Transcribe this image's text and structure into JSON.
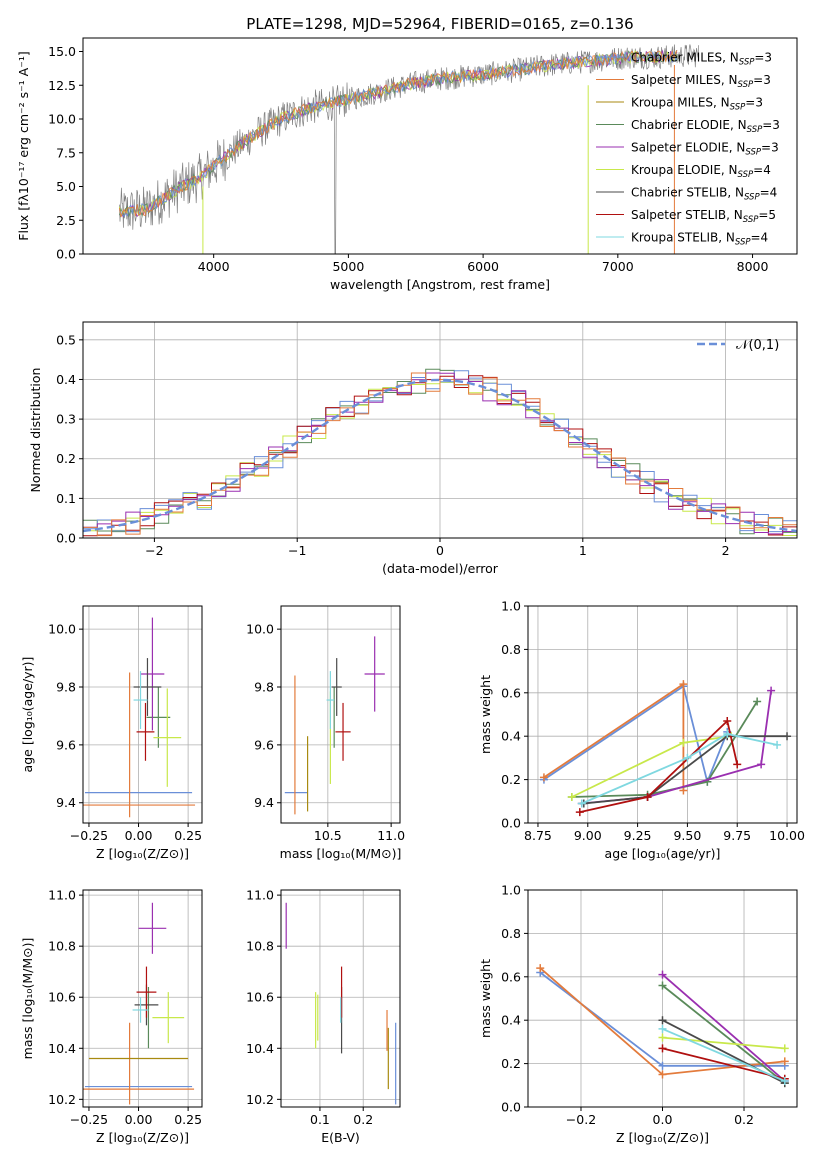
{
  "palette": [
    "#6a8fd8",
    "#e37b3c",
    "#a88a10",
    "#5a8a5a",
    "#9a2fb0",
    "#c8e84a",
    "#4a4a4a",
    "#b01010",
    "#7fd8e0"
  ],
  "chart_data": [
    {
      "type": "line",
      "title": "PLATE=1298, MJD=52964, FIBERID=0165, z=0.136",
      "xlabel": "wavelength [Angstrom, rest frame]",
      "ylabel": "Flux [fλ10⁻¹⁷ erg cm⁻² s⁻¹ A⁻¹]",
      "xlim": [
        3030,
        8330
      ],
      "ylim": [
        0,
        16
      ],
      "xticks": [
        4000,
        5000,
        6000,
        7000,
        8000
      ],
      "yticks": [
        0.0,
        2.5,
        5.0,
        7.5,
        10.0,
        12.5,
        15.0
      ],
      "ytick_labels": [
        "0.0",
        "2.5",
        "5.0",
        "7.5",
        "10.0",
        "12.5",
        "15.0"
      ],
      "grid": false,
      "legend_position": "top-right",
      "data_color": "#808080",
      "spectrum_anchor_x": [
        3300,
        3500,
        3700,
        3900,
        4100,
        4300,
        4500,
        4700,
        4900,
        5100,
        5300,
        5500,
        5700,
        5900,
        6100,
        6300,
        6500,
        6700,
        6900,
        7100,
        7300,
        7500
      ],
      "spectrum_anchor_y": [
        3.1,
        3.3,
        4.6,
        5.7,
        7.3,
        8.8,
        10.0,
        10.8,
        11.2,
        11.7,
        12.2,
        12.7,
        13.0,
        13.2,
        13.4,
        13.7,
        14.0,
        14.2,
        14.4,
        14.6,
        14.6,
        14.7
      ],
      "series": [
        {
          "name": "Chabrier MILES, N_SSP=3",
          "label_main": "Chabrier MILES, N",
          "label_sub": "SSP",
          "label_tail": "=3"
        },
        {
          "name": "Salpeter MILES, N_SSP=3",
          "label_main": "Salpeter MILES, N",
          "label_sub": "SSP",
          "label_tail": "=3"
        },
        {
          "name": "Kroupa MILES, N_SSP=3",
          "label_main": "Kroupa MILES, N",
          "label_sub": "SSP",
          "label_tail": "=3"
        },
        {
          "name": "Chabrier ELODIE, N_SSP=3",
          "label_main": "Chabrier ELODIE, N",
          "label_sub": "SSP",
          "label_tail": "=3"
        },
        {
          "name": "Salpeter ELODIE, N_SSP=3",
          "label_main": "Salpeter ELODIE, N",
          "label_sub": "SSP",
          "label_tail": "=3"
        },
        {
          "name": "Kroupa ELODIE, N_SSP=4",
          "label_main": "Kroupa ELODIE, N",
          "label_sub": "SSP",
          "label_tail": "=4"
        },
        {
          "name": "Chabrier STELIB, N_SSP=4",
          "label_main": "Chabrier STELIB, N",
          "label_sub": "SSP",
          "label_tail": "=4"
        },
        {
          "name": "Salpeter STELIB, N_SSP=5",
          "label_main": "Salpeter STELIB, N",
          "label_sub": "SSP",
          "label_tail": "=5"
        },
        {
          "name": "Kroupa STELIB, N_SSP=4",
          "label_main": "Kroupa STELIB, N",
          "label_sub": "SSP",
          "label_tail": "=4"
        }
      ]
    },
    {
      "type": "histogram",
      "xlabel": "(data-model)/error",
      "ylabel": "Normed distribution",
      "xlim": [
        -2.5,
        2.5
      ],
      "ylim": [
        0,
        0.545
      ],
      "xticks": [
        -2,
        -1,
        0,
        1,
        2
      ],
      "xtick_labels": [
        "−2",
        "−1",
        "0",
        "1",
        "2"
      ],
      "yticks": [
        0.0,
        0.1,
        0.2,
        0.3,
        0.4,
        0.5
      ],
      "ytick_labels": [
        "0.0",
        "0.1",
        "0.2",
        "0.3",
        "0.4",
        "0.5"
      ],
      "grid": true,
      "legend_position": "top-right",
      "reference_curve": {
        "name": "𝒩(0,1)",
        "mean": 0,
        "sigma": 1
      },
      "bin_width": 0.1
    },
    {
      "type": "errorbar",
      "xlabel": "Z [log₁₀(Z/Z⊙)]",
      "ylabel": "age  [log₁₀(age/yr)]",
      "xlim": [
        -0.28,
        0.32
      ],
      "ylim": [
        9.33,
        10.08
      ],
      "xticks": [
        -0.25,
        0.0,
        0.25
      ],
      "xtick_labels": [
        "−0.25",
        "0.00",
        "0.25"
      ],
      "yticks": [
        9.4,
        9.6,
        9.8,
        10.0
      ],
      "ytick_labels": [
        "9.4",
        "9.6",
        "9.8",
        "10.0"
      ],
      "grid": true,
      "points": [
        {
          "x": 0.0,
          "xerr": 0.27,
          "y": 9.435,
          "yerr": 0.0
        },
        {
          "x": 0.0,
          "xerr": 0.285,
          "y": 9.392,
          "yerr": 0.0
        },
        {
          "x": -0.045,
          "xerr": 0.0,
          "y": 9.6,
          "yerr": 0.25
        },
        {
          "x": 0.1,
          "xerr": 0.06,
          "y": 9.695,
          "yerr": 0.105
        },
        {
          "x": 0.07,
          "xerr": 0.06,
          "y": 9.845,
          "yerr": 0.195
        },
        {
          "x": 0.145,
          "xerr": 0.07,
          "y": 9.625,
          "yerr": 0.17
        },
        {
          "x": 0.045,
          "xerr": 0.07,
          "y": 9.8,
          "yerr": 0.1
        },
        {
          "x": 0.035,
          "xerr": 0.045,
          "y": 9.645,
          "yerr": 0.1
        },
        {
          "x": 0.01,
          "xerr": 0.035,
          "y": 9.755,
          "yerr": 0.1
        }
      ]
    },
    {
      "type": "errorbar",
      "xlabel": "mass [log₁₀(M/M⊙)]",
      "ylabel": "",
      "xlim": [
        10.13,
        11.07
      ],
      "ylim": [
        9.33,
        10.08
      ],
      "xticks": [
        10.5,
        11.0
      ],
      "xtick_labels": [
        "10.5",
        "11.0"
      ],
      "yticks": [
        9.4,
        9.6,
        9.8,
        10.0
      ],
      "ytick_labels": [
        "9.4",
        "9.6",
        "9.8",
        "10.0"
      ],
      "grid": true,
      "points": [
        {
          "x": 10.25,
          "xerr": 0.09,
          "y": 9.435,
          "yerr": 0.0
        },
        {
          "x": 10.24,
          "xerr": 0.0,
          "y": 9.6,
          "yerr": 0.24
        },
        {
          "x": 10.34,
          "xerr": 0.0,
          "y": 9.5,
          "yerr": 0.13
        },
        {
          "x": 10.55,
          "xerr": 0.0,
          "y": 9.695,
          "yerr": 0.105
        },
        {
          "x": 10.87,
          "xerr": 0.08,
          "y": 9.845,
          "yerr": 0.13
        },
        {
          "x": 10.52,
          "xerr": 0.0,
          "y": 9.625,
          "yerr": 0.16
        },
        {
          "x": 10.57,
          "xerr": 0.04,
          "y": 9.8,
          "yerr": 0.1
        },
        {
          "x": 10.62,
          "xerr": 0.06,
          "y": 9.645,
          "yerr": 0.1
        },
        {
          "x": 10.52,
          "xerr": 0.03,
          "y": 9.755,
          "yerr": 0.1
        }
      ]
    },
    {
      "type": "line",
      "xlabel": "age  [log₁₀(age/yr)]",
      "ylabel": "mass weight",
      "xlim": [
        8.7,
        10.05
      ],
      "ylim": [
        0,
        1
      ],
      "xticks": [
        8.75,
        9.0,
        9.25,
        9.5,
        9.75,
        10.0
      ],
      "xtick_labels": [
        "8.75",
        "9.00",
        "9.25",
        "9.50",
        "9.75",
        "10.00"
      ],
      "yticks": [
        0.0,
        0.2,
        0.4,
        0.6,
        0.8,
        1.0
      ],
      "ytick_labels": [
        "0.0",
        "0.2",
        "0.4",
        "0.6",
        "0.8",
        "1.0"
      ],
      "grid": true,
      "series": [
        {
          "x": [
            8.78,
            9.48,
            9.6,
            9.7
          ],
          "y": [
            0.2,
            0.63,
            0.19,
            0.42
          ]
        },
        {
          "x": [
            8.78,
            9.48,
            9.48
          ],
          "y": [
            0.21,
            0.64,
            0.15
          ]
        },
        {
          "x": [
            8.92,
            9.3,
            9.6,
            9.85
          ],
          "y": [
            0.12,
            0.13,
            0.19,
            0.56
          ]
        },
        {
          "x": [
            8.97,
            9.3,
            9.87,
            9.92
          ],
          "y": [
            0.09,
            0.12,
            0.27,
            0.61
          ]
        },
        {
          "x": [
            8.92,
            9.48,
            9.72
          ],
          "y": [
            0.12,
            0.37,
            0.4
          ]
        },
        {
          "x": [
            8.98,
            9.3,
            9.7,
            10.0
          ],
          "y": [
            0.09,
            0.12,
            0.4,
            0.4
          ]
        },
        {
          "x": [
            8.96,
            9.3,
            9.7,
            9.75
          ],
          "y": [
            0.05,
            0.12,
            0.47,
            0.27
          ]
        },
        {
          "x": [
            8.97,
            9.5,
            9.7,
            9.95
          ],
          "y": [
            0.09,
            0.3,
            0.41,
            0.36
          ]
        }
      ]
    },
    {
      "type": "errorbar",
      "xlabel": "Z [log₁₀(Z/Z⊙)]",
      "ylabel": "mass [log₁₀(M/M⊙)]",
      "xlim": [
        -0.28,
        0.32
      ],
      "ylim": [
        10.17,
        11.02
      ],
      "xticks": [
        -0.25,
        0.0,
        0.25
      ],
      "xtick_labels": [
        "−0.25",
        "0.00",
        "0.25"
      ],
      "yticks": [
        10.2,
        10.4,
        10.6,
        10.8,
        11.0
      ],
      "ytick_labels": [
        "10.2",
        "10.4",
        "10.6",
        "10.8",
        "11.0"
      ],
      "grid": true,
      "points": [
        {
          "x": 0.0,
          "xerr": 0.27,
          "y": 10.25,
          "yerr": 0.0
        },
        {
          "x": 0.0,
          "xerr": 0.28,
          "y": 10.24,
          "yerr": 0.0
        },
        {
          "x": -0.045,
          "xerr": 0.0,
          "y": 10.34,
          "yerr": 0.16
        },
        {
          "x": 0.05,
          "xerr": 0.0,
          "y": 10.52,
          "yerr": 0.12
        },
        {
          "x": 0.07,
          "xerr": 0.07,
          "y": 10.87,
          "yerr": 0.1
        },
        {
          "x": 0.15,
          "xerr": 0.08,
          "y": 10.52,
          "yerr": 0.1
        },
        {
          "x": 0.04,
          "xerr": 0.06,
          "y": 10.57,
          "yerr": 0.08
        },
        {
          "x": 0.04,
          "xerr": 0.05,
          "y": 10.62,
          "yerr": 0.1
        },
        {
          "x": 0.01,
          "xerr": 0.04,
          "y": 10.55,
          "yerr": 0.05
        },
        {
          "x": 0.0,
          "xerr": 0.25,
          "y": 10.36,
          "yerr": 0.0
        }
      ]
    },
    {
      "type": "errorbar",
      "xlabel": "E(B-V)",
      "ylabel": "",
      "xlim": [
        0.01,
        0.285
      ],
      "ylim": [
        10.17,
        11.02
      ],
      "xticks": [
        0.1,
        0.2
      ],
      "xtick_labels": [
        "0.1",
        "0.2"
      ],
      "yticks": [
        10.2,
        10.4,
        10.6,
        10.8,
        11.0
      ],
      "ytick_labels": [
        "10.2",
        "10.4",
        "10.6",
        "10.8",
        "11.0"
      ],
      "grid": true,
      "points": [
        {
          "x": 0.275,
          "xerr": 0.0,
          "y": 10.34,
          "yerr": 0.16
        },
        {
          "x": 0.258,
          "xerr": 0.0,
          "y": 10.36,
          "yerr": 0.12
        },
        {
          "x": 0.255,
          "xerr": 0.0,
          "y": 10.47,
          "yerr": 0.08
        },
        {
          "x": 0.09,
          "xerr": 0.0,
          "y": 10.51,
          "yerr": 0.11
        },
        {
          "x": 0.022,
          "xerr": 0.0,
          "y": 10.88,
          "yerr": 0.09
        },
        {
          "x": 0.095,
          "xerr": 0.0,
          "y": 10.52,
          "yerr": 0.09
        },
        {
          "x": 0.15,
          "xerr": 0.0,
          "y": 10.51,
          "yerr": 0.13
        },
        {
          "x": 0.15,
          "xerr": 0.0,
          "y": 10.62,
          "yerr": 0.1
        },
        {
          "x": 0.148,
          "xerr": 0.0,
          "y": 10.55,
          "yerr": 0.05
        }
      ]
    },
    {
      "type": "line",
      "xlabel": "Z [log₁₀(Z/Z⊙)]",
      "ylabel": "mass weight",
      "xlim": [
        -0.33,
        0.33
      ],
      "ylim": [
        0,
        1
      ],
      "xticks": [
        -0.2,
        0.0,
        0.2
      ],
      "xtick_labels": [
        "−0.2",
        "0.0",
        "0.2"
      ],
      "yticks": [
        0.0,
        0.2,
        0.4,
        0.6,
        0.8,
        1.0
      ],
      "ytick_labels": [
        "0.0",
        "0.2",
        "0.4",
        "0.6",
        "0.8",
        "1.0"
      ],
      "grid": true,
      "series": [
        {
          "x": [
            -0.3,
            0.0,
            0.3
          ],
          "y": [
            0.62,
            0.19,
            0.19
          ]
        },
        {
          "x": [
            -0.3,
            0.0,
            0.3
          ],
          "y": [
            0.64,
            0.15,
            0.21
          ]
        },
        {
          "x": [
            0.0,
            0.3
          ],
          "y": [
            0.56,
            0.11
          ]
        },
        {
          "x": [
            0.0,
            0.3
          ],
          "y": [
            0.61,
            0.12
          ]
        },
        {
          "x": [
            0.0,
            0.3
          ],
          "y": [
            0.32,
            0.27
          ]
        },
        {
          "x": [
            0.0,
            0.3
          ],
          "y": [
            0.4,
            0.11
          ]
        },
        {
          "x": [
            0.0,
            0.3
          ],
          "y": [
            0.27,
            0.13
          ]
        },
        {
          "x": [
            0.0,
            0.3
          ],
          "y": [
            0.36,
            0.12
          ]
        }
      ]
    }
  ]
}
